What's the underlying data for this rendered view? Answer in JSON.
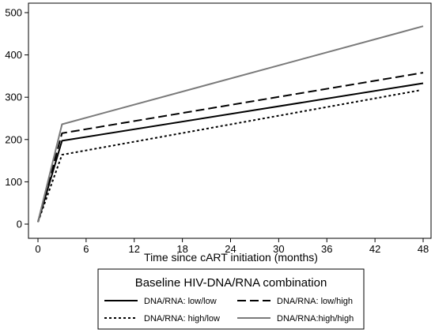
{
  "chart_data": {
    "type": "line",
    "xlabel": "Time since cART initiation (months)",
    "ylabel": "",
    "xlim": [
      0,
      48
    ],
    "ylim": [
      0,
      500
    ],
    "xticks": [
      0,
      6,
      12,
      18,
      24,
      30,
      36,
      42,
      48
    ],
    "yticks": [
      0,
      100,
      200,
      300,
      400,
      500
    ],
    "grid": false,
    "legend": {
      "title": "Baseline HIV-DNA/RNA combination",
      "placement": "bottom"
    },
    "series": [
      {
        "name": "DNA/RNA: low/low",
        "style": "solid",
        "color": "#000000",
        "x": [
          0,
          3,
          48
        ],
        "y": [
          5,
          197,
          333
        ]
      },
      {
        "name": "DNA/RNA: low/high",
        "style": "dashed",
        "color": "#000000",
        "x": [
          0,
          3,
          48
        ],
        "y": [
          5,
          215,
          358
        ]
      },
      {
        "name": "DNA/RNA: high/low",
        "style": "dotted",
        "color": "#000000",
        "x": [
          0,
          3,
          47.5
        ],
        "y": [
          5,
          164,
          316
        ]
      },
      {
        "name": "DNA/RNA:high/high",
        "style": "solid",
        "color": "#7a7a7a",
        "x": [
          0,
          3,
          48
        ],
        "y": [
          5,
          236,
          468
        ]
      }
    ]
  }
}
